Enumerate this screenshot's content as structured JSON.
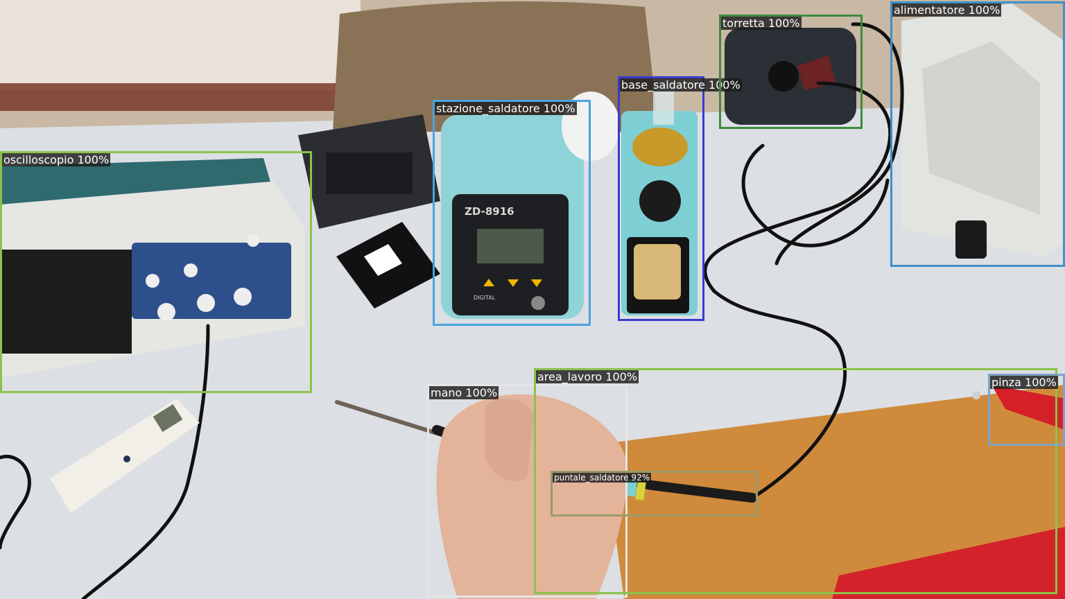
{
  "scene": {
    "description_icon": "photo-lab-bench",
    "device_text": {
      "station_model": "ZD-8916",
      "station_brand": "DIGITAL"
    }
  },
  "detections": [
    {
      "id": "oscilloscope",
      "label": "oscilloscopio 100%",
      "color": "#8bc34a"
    },
    {
      "id": "soldering-station",
      "label": "stazione_saldatore 100%",
      "color": "#4aa3df"
    },
    {
      "id": "soldering-base",
      "label": "base_saldatore 100%",
      "color": "#3a3acf"
    },
    {
      "id": "tower",
      "label": "torretta 100%",
      "color": "#3d8b3d"
    },
    {
      "id": "power-supply",
      "label": "alimentatore 100%",
      "color": "#3f8fc9"
    },
    {
      "id": "hand",
      "label": "mano 100%",
      "color": "#e6e6e6"
    },
    {
      "id": "work-area",
      "label": "area_lavoro 100%",
      "color": "#8bc34a"
    },
    {
      "id": "pliers",
      "label": "pinza 100%",
      "color": "#7fa3c8"
    },
    {
      "id": "soldering-tip",
      "label": "puntale_saldatore 92%",
      "color": "#9a9a6a"
    }
  ],
  "colors": {
    "table": "#dcdfe3",
    "floor": "#c9b7a0",
    "wood": "#d08a3a",
    "teal": "#8fd3d8"
  }
}
